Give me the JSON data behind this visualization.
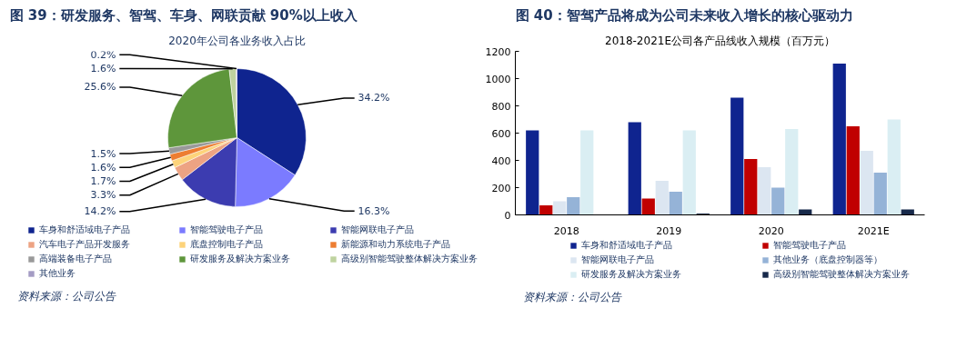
{
  "chart_data": [
    {
      "type": "pie",
      "title": "图 39：研发服务、智驾、车身、网联贡献 90%以上收入",
      "subtitle": "2020年公司各业务收入占比",
      "categories": [
        "车身和舒适域电子产品",
        "智能驾驶电子产品",
        "智能网联电子产品",
        "汽车电子产品开发服务",
        "底盘控制电子产品",
        "新能源和动力系统电子产品",
        "高端装备电子产品",
        "研发服务及解决方案业务",
        "高级别智能驾驶整体解决方案业务",
        "其他业务"
      ],
      "values": [
        34.2,
        16.3,
        14.2,
        3.3,
        1.7,
        1.6,
        1.5,
        25.6,
        1.6,
        0.2
      ],
      "colors": [
        "#0f248f",
        "#7b7bff",
        "#3c3cb0",
        "#eda383",
        "#fdd37a",
        "#ed7d31",
        "#999999",
        "#5e963b",
        "#bfd39f",
        "#a49cc4"
      ],
      "value_labels": [
        "34.2%",
        "16.3%",
        "14.2%",
        "3.3%",
        "1.7%",
        "1.6%",
        "1.5%",
        "25.6%",
        "1.6%",
        "0.2%"
      ],
      "legend": "bottom",
      "annotations": [
        "资料来源：公司公告"
      ]
    },
    {
      "type": "bar",
      "title": "图 40：智驾产品将成为公司未来收入增长的核心驱动力",
      "subtitle": "2018-2021E公司各产品线收入规模（百万元）",
      "categories": [
        "2018",
        "2019",
        "2020",
        "2021E"
      ],
      "series": [
        {
          "name": "车身和舒适域电子产品",
          "color": "#0f248f",
          "values": [
            620,
            680,
            860,
            1110
          ]
        },
        {
          "name": "智能驾驶电子产品",
          "color": "#c00000",
          "values": [
            70,
            120,
            410,
            650
          ]
        },
        {
          "name": "智能网联电子产品",
          "color": "#dce6f1",
          "values": [
            100,
            250,
            350,
            470
          ]
        },
        {
          "name": "其他业务（底盘控制器等）",
          "color": "#95b3d7",
          "values": [
            130,
            170,
            200,
            310
          ]
        },
        {
          "name": "研发服务及解决方案业务",
          "color": "#daeef3",
          "values": [
            620,
            620,
            630,
            700
          ]
        },
        {
          "name": "高级别智能驾驶整体解决方案业务",
          "color": "#17294a",
          "values": [
            null,
            10,
            40,
            40
          ]
        }
      ],
      "ylim": [
        0,
        1200
      ],
      "yticks": [
        0,
        200,
        400,
        600,
        800,
        1000,
        1200
      ],
      "grid": false,
      "legend": "bottom",
      "annotations": [
        "资料来源：公司公告"
      ]
    }
  ]
}
